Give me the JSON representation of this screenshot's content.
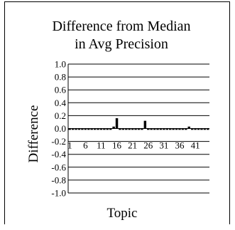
{
  "chart_data": {
    "type": "bar",
    "title": [
      "Difference from Median",
      "in Avg Precision"
    ],
    "xlabel": "Topic",
    "ylabel": "Difference",
    "ylim": [
      -1.0,
      1.0
    ],
    "ytick_labels": [
      "1.0",
      "0.8",
      "0.6",
      "0.4",
      "0.2",
      "0.0",
      "-0.2",
      "-0.4",
      "-0.6",
      "-0.8",
      "-1.0"
    ],
    "xtick_labels": [
      "1",
      "6",
      "11",
      "16",
      "21",
      "26",
      "31",
      "36",
      "41"
    ],
    "grid": true,
    "legend": "none",
    "bar_color": "#000000",
    "categories": [
      1,
      2,
      3,
      4,
      5,
      6,
      7,
      8,
      9,
      10,
      11,
      12,
      13,
      14,
      15,
      16,
      17,
      18,
      19,
      20,
      21,
      22,
      23,
      24,
      25,
      26,
      27,
      28,
      29,
      30,
      31,
      32,
      33,
      34,
      35,
      36,
      37,
      38,
      39,
      40,
      41,
      42,
      43,
      44,
      45
    ],
    "values": [
      -0.02,
      -0.02,
      -0.02,
      -0.02,
      -0.02,
      -0.02,
      -0.02,
      -0.02,
      -0.02,
      -0.02,
      -0.02,
      -0.02,
      -0.02,
      -0.02,
      0.03,
      0.16,
      -0.02,
      -0.02,
      -0.02,
      -0.02,
      -0.02,
      -0.02,
      -0.02,
      -0.02,
      0.12,
      -0.02,
      -0.02,
      -0.02,
      -0.02,
      -0.02,
      -0.02,
      -0.02,
      -0.02,
      -0.02,
      -0.02,
      -0.02,
      -0.02,
      -0.02,
      0.03,
      -0.02,
      -0.02,
      -0.02,
      -0.02,
      -0.02,
      -0.02
    ]
  }
}
